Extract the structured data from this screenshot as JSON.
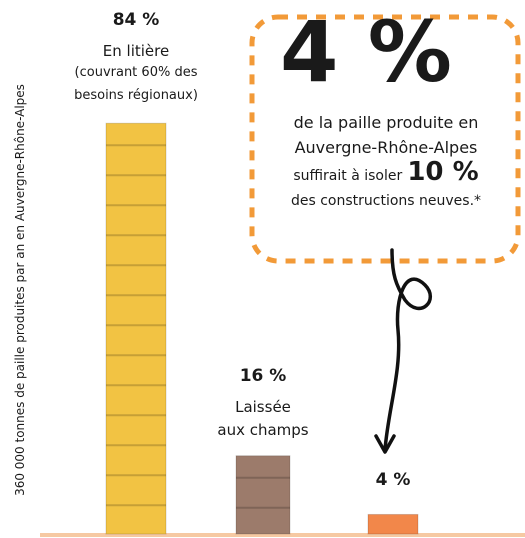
{
  "chart_data": {
    "type": "bar",
    "y_axis_label": "360 000 tonnes de paille produites par an en Auvergne-Rhône-Alpes",
    "values": [
      84,
      16,
      4
    ],
    "value_labels": [
      "84 %",
      "16 %",
      "4 %"
    ],
    "descriptions": [
      [
        "En litière",
        "(couvrant 60% des",
        "besoins régionaux)"
      ],
      [
        "Laissée",
        "aux champs"
      ],
      []
    ],
    "colors": [
      "#f2c343",
      "#9c7b6b",
      "#f2874a"
    ],
    "ylim": [
      0,
      100
    ],
    "callout": {
      "big": "4 %",
      "lines": [
        "de la paille produite en",
        "Auvergne-Rhône-Alpes"
      ],
      "lead": "suffirait à isoler",
      "highlight": "10 %",
      "end": "des constructions neuves.*"
    }
  }
}
